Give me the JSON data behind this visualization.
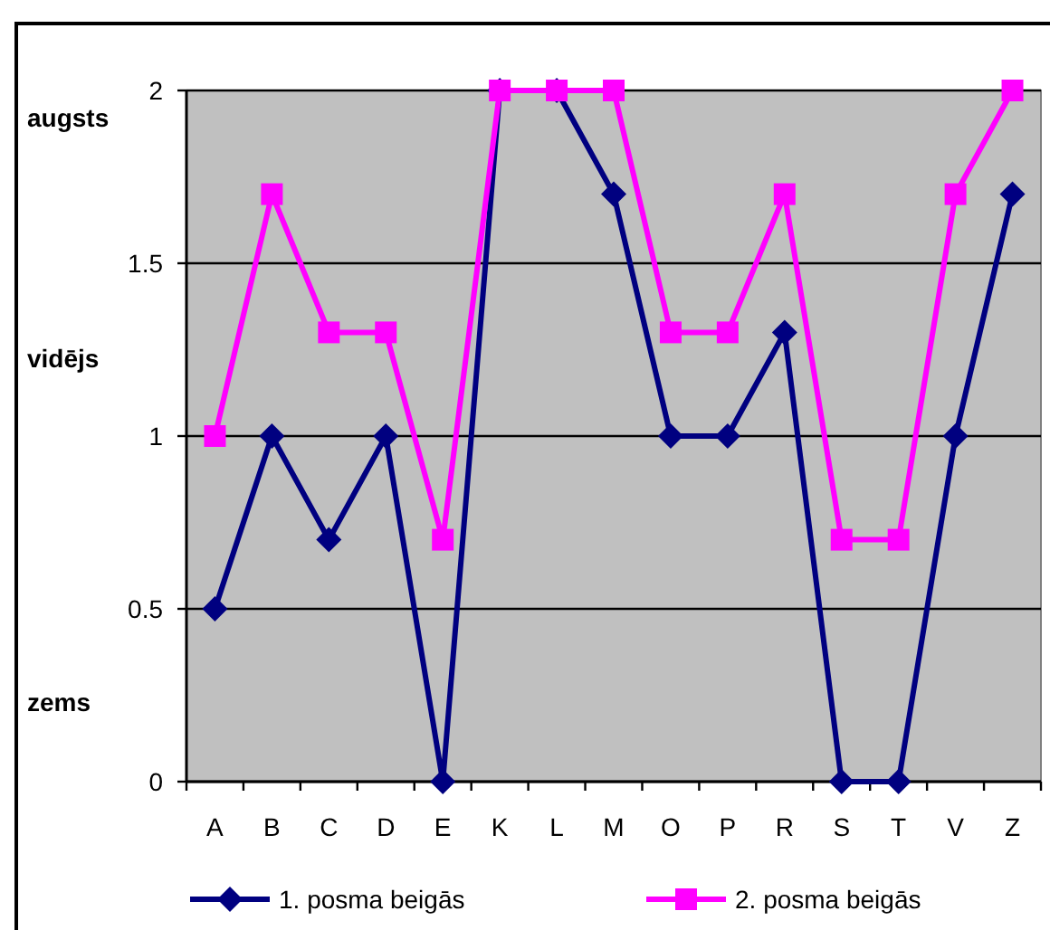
{
  "chart_data": {
    "type": "line",
    "categories": [
      "A",
      "B",
      "C",
      "D",
      "E",
      "K",
      "L",
      "M",
      "O",
      "P",
      "R",
      "S",
      "T",
      "V",
      "Z"
    ],
    "series": [
      {
        "name": "1. posma beigās",
        "color": "#000080",
        "marker": "diamond",
        "values": [
          0.5,
          1,
          0.7,
          1,
          0,
          2,
          2,
          1.7,
          1,
          1,
          1.3,
          0,
          0,
          1,
          1.7
        ]
      },
      {
        "name": "2. posma beigās",
        "color": "#ff00ff",
        "marker": "square",
        "values": [
          1,
          1.7,
          1.3,
          1.3,
          0.7,
          2,
          2,
          2,
          1.3,
          1.3,
          1.7,
          0.7,
          0.7,
          1.7,
          2
        ]
      }
    ],
    "ylim": [
      0,
      2
    ],
    "yticks": [
      0,
      0.5,
      1,
      1.5,
      2
    ],
    "annotations": [
      "augsts",
      "vidējs",
      "zems"
    ],
    "grid": "y",
    "legend": "bottom"
  }
}
